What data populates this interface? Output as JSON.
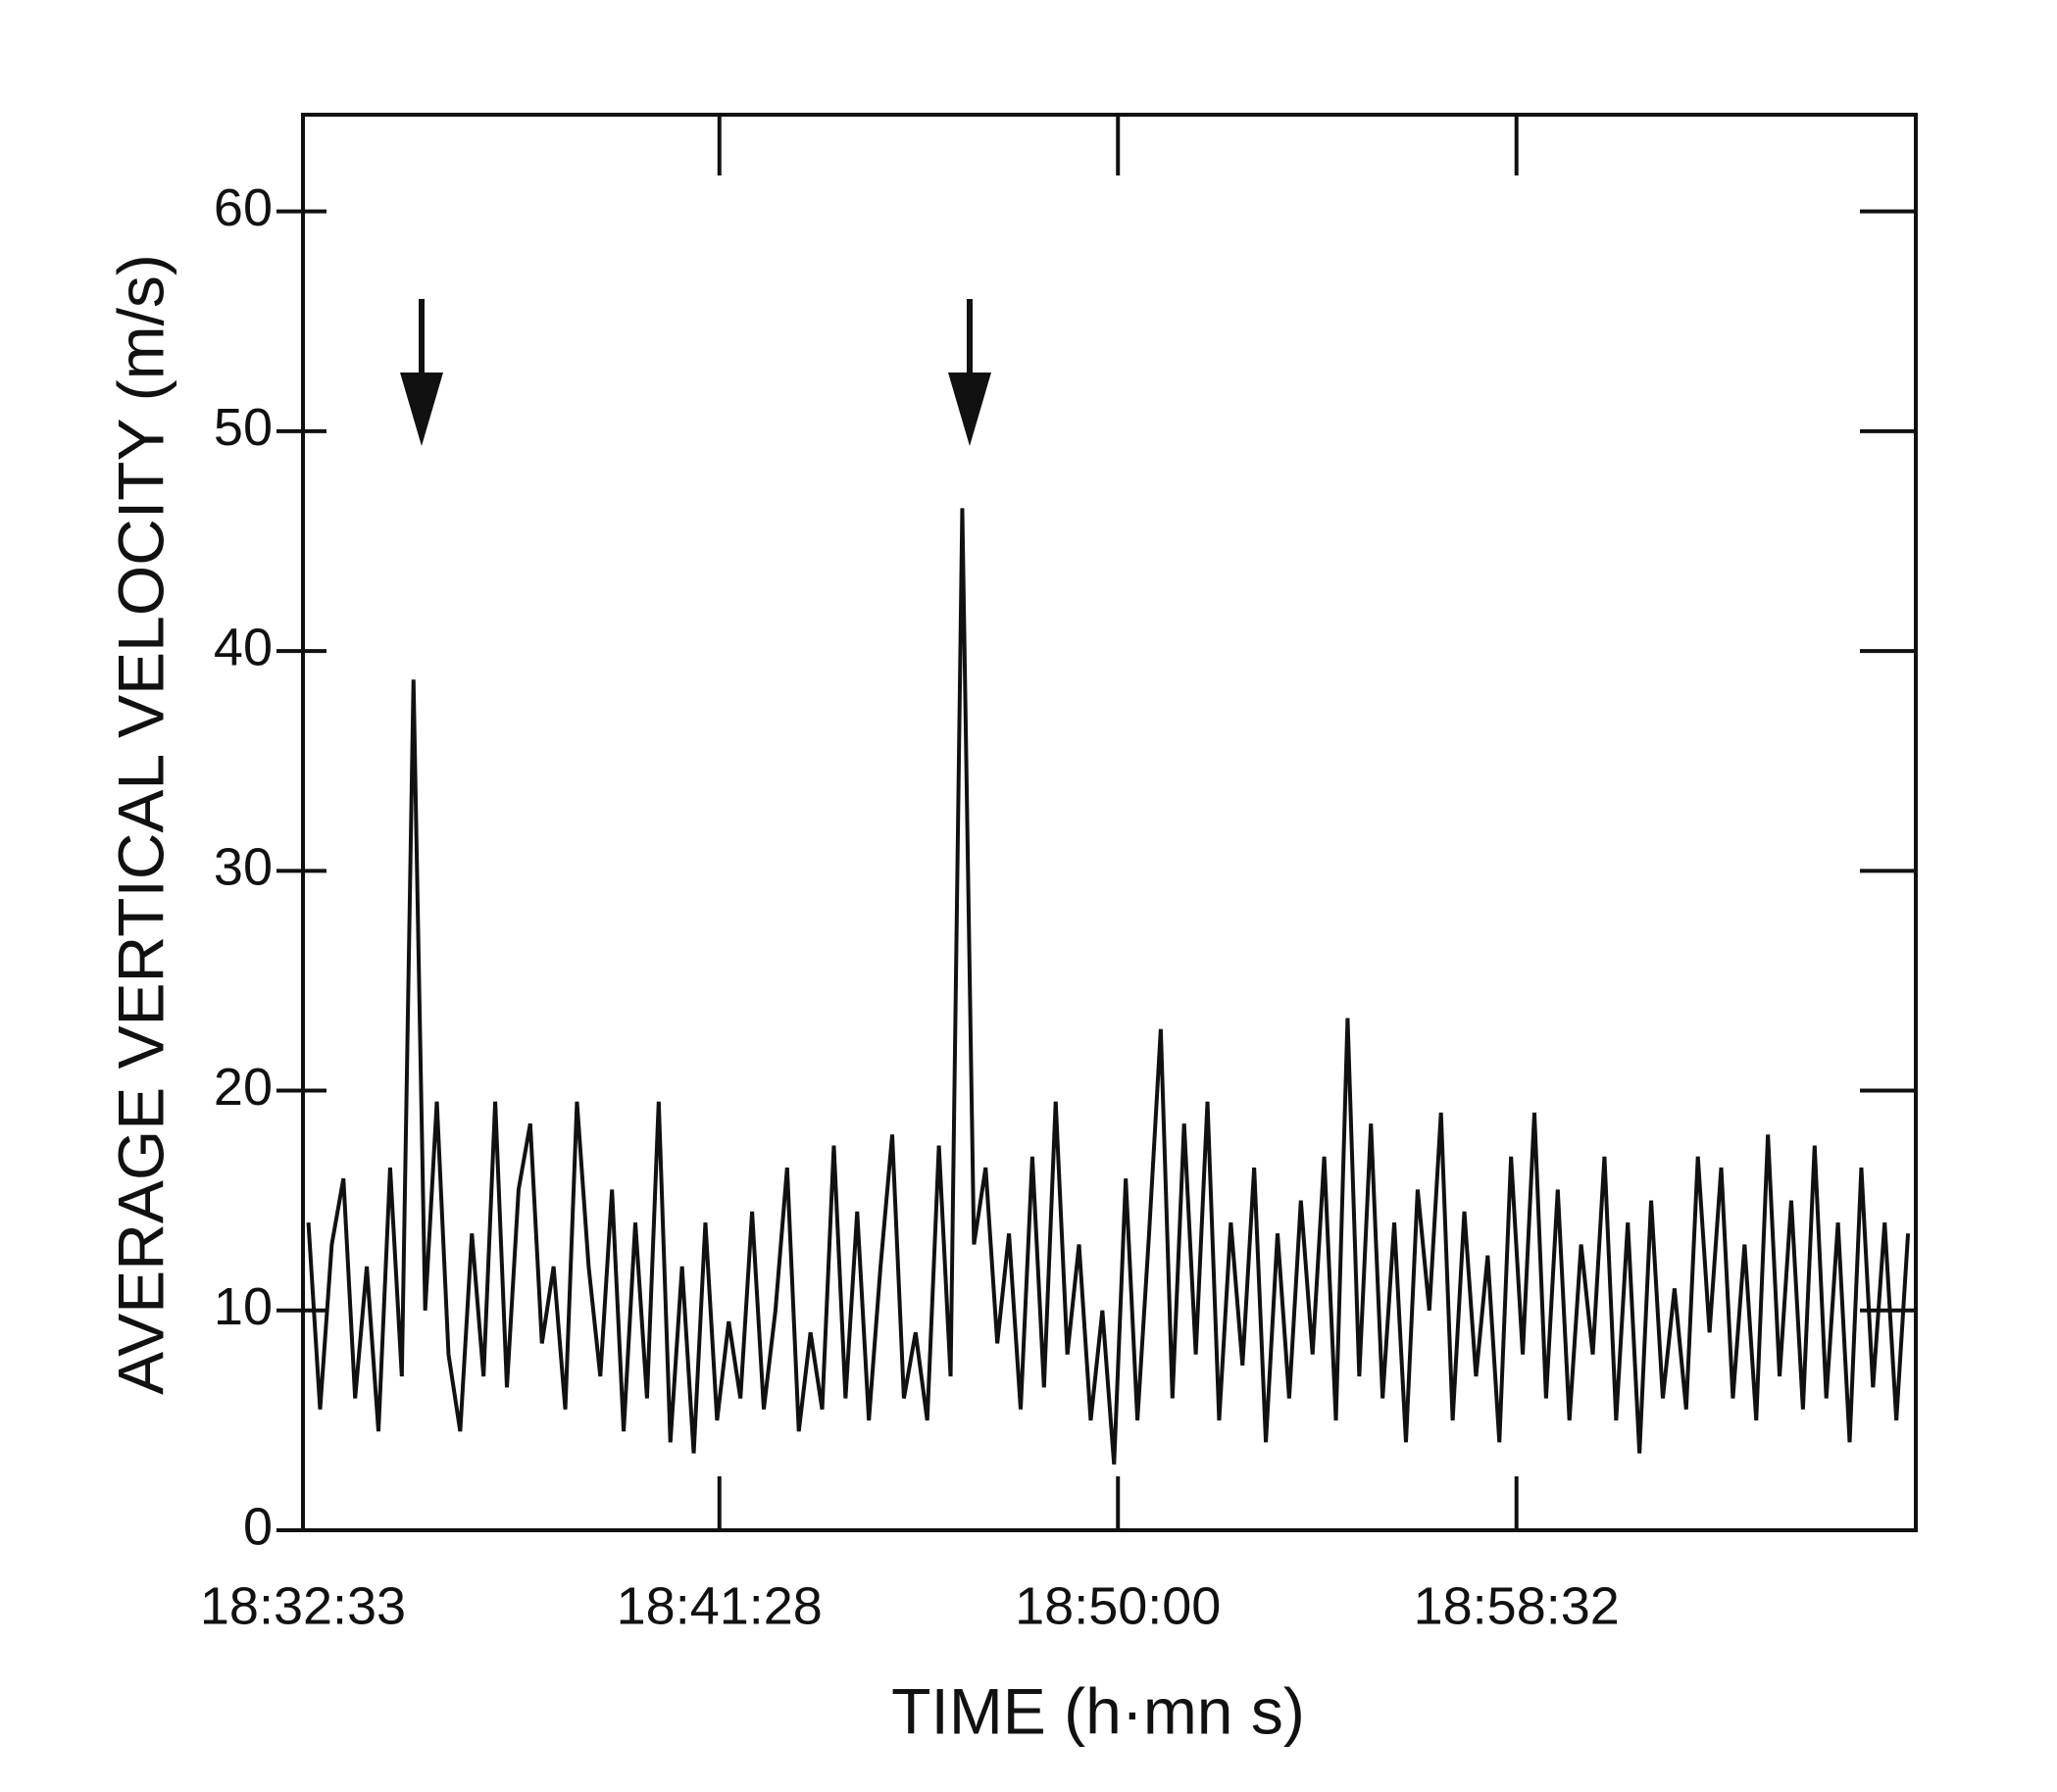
{
  "chart_data": {
    "type": "line",
    "xlabel": "TIME (h·mn s)",
    "ylabel": "AVERAGE VERTICAL VELOCITY (m/s)",
    "x": [
      66760,
      66775,
      66790,
      66805,
      66820,
      66835,
      66850,
      66865,
      66880,
      66895,
      66910,
      66925,
      66940,
      66955,
      66970,
      66985,
      67000,
      67015,
      67030,
      67045,
      67060,
      67075,
      67090,
      67105,
      67120,
      67135,
      67150,
      67165,
      67180,
      67195,
      67210,
      67225,
      67240,
      67255,
      67270,
      67285,
      67300,
      67315,
      67330,
      67345,
      67360,
      67375,
      67390,
      67405,
      67420,
      67435,
      67450,
      67465,
      67480,
      67495,
      67510,
      67525,
      67540,
      67555,
      67570,
      67585,
      67600,
      67615,
      67630,
      67645,
      67660,
      67675,
      67690,
      67705,
      67720,
      67735,
      67750,
      67765,
      67780,
      67795,
      67810,
      67825,
      67840,
      67855,
      67870,
      67885,
      67900,
      67915,
      67930,
      67945,
      67960,
      67975,
      67990,
      68005,
      68020,
      68035,
      68050,
      68065,
      68080,
      68095,
      68110,
      68125,
      68140,
      68155,
      68170,
      68185,
      68200,
      68215,
      68230,
      68245,
      68260,
      68275,
      68290,
      68305,
      68320,
      68335,
      68350,
      68365,
      68380,
      68395,
      68410,
      68425,
      68440,
      68455,
      68470,
      68485,
      68500,
      68515,
      68530,
      68545,
      68560,
      68575,
      68590,
      68605,
      68620,
      68635,
      68650,
      68665,
      68680,
      68695,
      68710,
      68725,
      68740,
      68755,
      68770,
      68785,
      68800,
      68815
    ],
    "series": [
      {
        "color": "#111111",
        "values": [
          14,
          5.5,
          13,
          16,
          6,
          12,
          4.5,
          16.5,
          7,
          38.7,
          10,
          19.5,
          8,
          4.5,
          13.5,
          7,
          19.5,
          6.5,
          15.5,
          18.5,
          8.5,
          12,
          5.5,
          19.5,
          12,
          7,
          15.5,
          4.5,
          14,
          6,
          19.5,
          4,
          12,
          3.5,
          14,
          5,
          9.5,
          6,
          14.5,
          5.5,
          10,
          16.5,
          4.5,
          9,
          5.5,
          17.5,
          6,
          14.5,
          5,
          12,
          18,
          6,
          9,
          5,
          17.5,
          7,
          46.5,
          13,
          16.5,
          8.5,
          13.5,
          5.5,
          17,
          6.5,
          19.5,
          8,
          13,
          5,
          10,
          3,
          16,
          5,
          13.5,
          22.8,
          6,
          18.5,
          8,
          19.5,
          5,
          14,
          7.5,
          16.5,
          4,
          13.5,
          6,
          15,
          8,
          17,
          5,
          23.3,
          7,
          18.5,
          6,
          14,
          4,
          15.5,
          10,
          19,
          5,
          14.5,
          7,
          12.5,
          4,
          17,
          8,
          19,
          6,
          15.5,
          5,
          13,
          8,
          17,
          5,
          14,
          3.5,
          15,
          6,
          11,
          5.5,
          17,
          9,
          16.5,
          6,
          13,
          5,
          18,
          7,
          15,
          5.5,
          17.5,
          6,
          14,
          4,
          16.5,
          6.5,
          14,
          5,
          13.5
        ]
      }
    ],
    "xlim": [
      66753,
      68825
    ],
    "xticks": [
      {
        "value": 66753,
        "label": "18:32:33"
      },
      {
        "value": 67288,
        "label": "18:41:28"
      },
      {
        "value": 67800,
        "label": "18:50:00"
      },
      {
        "value": 68312,
        "label": "18:58:32"
      }
    ],
    "ylim": [
      0,
      64.4
    ],
    "yticks": [
      0,
      10,
      20,
      30,
      40,
      50,
      60
    ]
  }
}
